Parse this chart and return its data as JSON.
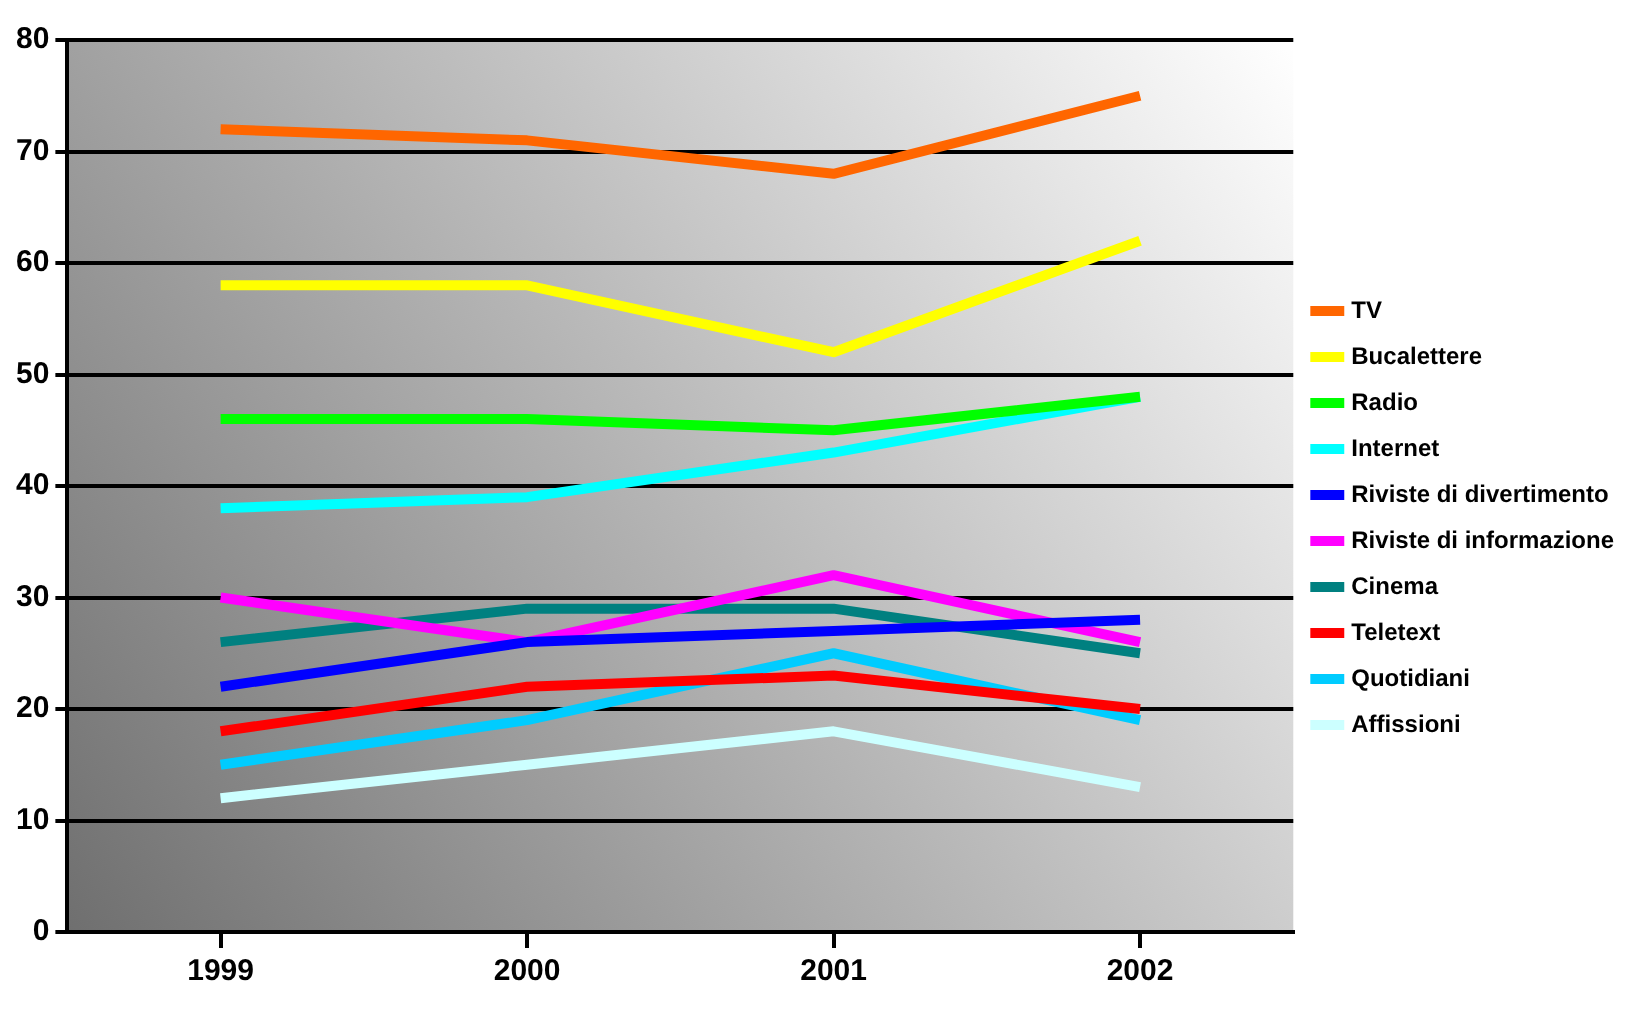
{
  "chart_data": {
    "type": "line",
    "categories": [
      "1999",
      "2000",
      "2001",
      "2002"
    ],
    "ylim": [
      0,
      80
    ],
    "yticks": [
      0,
      10,
      20,
      30,
      40,
      50,
      60,
      70,
      80
    ],
    "grid": "y",
    "legend": "right",
    "marker": "none",
    "line_style": "solid",
    "series": [
      {
        "name": "TV",
        "color": "#ff6600",
        "values": [
          72,
          71,
          68,
          75
        ]
      },
      {
        "name": "Bucalettere",
        "color": "#ffff00",
        "values": [
          58,
          58,
          52,
          62
        ]
      },
      {
        "name": "Radio",
        "color": "#00ff00",
        "values": [
          46,
          46,
          45,
          48
        ]
      },
      {
        "name": "Internet",
        "color": "#00ffff",
        "values": [
          38,
          39,
          43,
          48
        ]
      },
      {
        "name": "Riviste di divertimento",
        "color": "#0000ff",
        "values": [
          22,
          26,
          27,
          28
        ]
      },
      {
        "name": "Riviste di informazione",
        "color": "#ff00ff",
        "values": [
          30,
          26,
          32,
          26
        ]
      },
      {
        "name": "Cinema",
        "color": "#008080",
        "values": [
          26,
          29,
          29,
          25
        ]
      },
      {
        "name": "Teletext",
        "color": "#ff0000",
        "values": [
          18,
          22,
          23,
          20
        ]
      },
      {
        "name": "Quotidiani",
        "color": "#00ccff",
        "values": [
          15,
          19,
          25,
          19
        ]
      },
      {
        "name": "Affissioni",
        "color": "#ccffff",
        "values": [
          12,
          15,
          18,
          13
        ]
      }
    ]
  }
}
